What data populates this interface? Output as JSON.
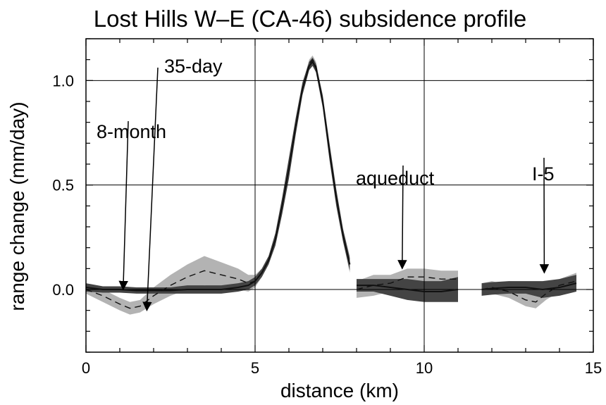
{
  "chart_data": {
    "type": "line",
    "title": "Lost Hills W–E (CA-46) subsidence profile",
    "xlabel": "distance (km)",
    "ylabel": "range change (mm/day)",
    "xlim": [
      0,
      15
    ],
    "ylim": [
      1.2,
      -0.3
    ],
    "y_inverted": true,
    "grid": "major lines at x = 5, 10 and y = 0.0, 0.5, 1.0",
    "x_ticks": [
      {
        "value": 0,
        "label": "0"
      },
      {
        "value": 5,
        "label": "5"
      },
      {
        "value": 10,
        "label": "10"
      },
      {
        "value": 15,
        "label": "15"
      }
    ],
    "y_ticks": [
      {
        "value": 0.0,
        "label": "0.0"
      },
      {
        "value": 0.5,
        "label": "0.5"
      },
      {
        "value": 1.0,
        "label": "1.0"
      }
    ],
    "series": [
      {
        "name": "8-month",
        "style": "solid line with dark band",
        "color": "#111111",
        "band_color": "#444444",
        "segments": [
          {
            "x": [
              0,
              0.5,
              1,
              1.5,
              2,
              2.5,
              3,
              3.5,
              4,
              4.5,
              4.8,
              5.0,
              5.2,
              5.4,
              5.6,
              5.8,
              6.0,
              6.2,
              6.4,
              6.6,
              6.7,
              6.8,
              7.0,
              7.2,
              7.4,
              7.6,
              7.8
            ],
            "y": [
              0.01,
              0.0,
              0.0,
              -0.005,
              -0.005,
              -0.005,
              0.0,
              0.0,
              0.0,
              0.01,
              0.02,
              0.04,
              0.08,
              0.14,
              0.24,
              0.4,
              0.58,
              0.78,
              0.96,
              1.07,
              1.09,
              1.06,
              0.9,
              0.66,
              0.44,
              0.26,
              0.12
            ],
            "band": [
              0.02,
              0.015,
              0.015,
              0.015,
              0.015,
              0.015,
              0.02,
              0.02,
              0.02,
              0.02,
              0.02,
              0.02,
              0.02,
              0.02,
              0.03,
              0.04,
              0.05,
              0.04,
              0.03,
              0.02,
              0.02,
              0.02,
              0.03,
              0.04,
              0.04,
              0.03,
              0.03
            ]
          },
          {
            "x": [
              8.0,
              8.5,
              9.0,
              9.5,
              10.0,
              10.5,
              11.0
            ],
            "y": [
              0.02,
              0.02,
              0.01,
              0.0,
              -0.01,
              -0.01,
              0.0
            ],
            "band": [
              0.03,
              0.03,
              0.04,
              0.05,
              0.05,
              0.05,
              0.06
            ]
          },
          {
            "x": [
              11.7,
              12.0,
              12.5,
              13.0,
              13.5,
              14.0,
              14.5
            ],
            "y": [
              0.0,
              0.005,
              0.01,
              0.01,
              0.0,
              0.01,
              0.03
            ],
            "band": [
              0.03,
              0.03,
              0.03,
              0.03,
              0.04,
              0.04,
              0.04
            ]
          }
        ]
      },
      {
        "name": "35-day",
        "style": "dashed line with light band",
        "color": "#111111",
        "band_color": "#b3b3b3",
        "segments": [
          {
            "x": [
              0,
              0.5,
              1.0,
              1.3,
              1.6,
              2.0,
              2.5,
              3.0,
              3.5,
              4.0,
              4.5,
              4.8,
              5.0,
              5.2,
              5.4,
              5.6,
              5.8,
              6.0,
              6.2,
              6.4,
              6.6,
              6.7,
              6.8,
              7.0,
              7.2,
              7.4,
              7.6,
              7.8
            ],
            "y": [
              0.0,
              -0.03,
              -0.07,
              -0.09,
              -0.08,
              -0.03,
              0.02,
              0.06,
              0.09,
              0.07,
              0.05,
              0.03,
              0.04,
              0.08,
              0.14,
              0.24,
              0.4,
              0.58,
              0.78,
              0.96,
              1.08,
              1.1,
              1.07,
              0.9,
              0.66,
              0.44,
              0.26,
              0.12
            ],
            "band": [
              0.02,
              0.03,
              0.03,
              0.03,
              0.03,
              0.04,
              0.05,
              0.06,
              0.07,
              0.06,
              0.05,
              0.04,
              0.03,
              0.02,
              0.02,
              0.02,
              0.03,
              0.03,
              0.03,
              0.02,
              0.02,
              0.02,
              0.02,
              0.02,
              0.03,
              0.03,
              0.03,
              0.04
            ]
          },
          {
            "x": [
              8.0,
              8.5,
              9.0,
              9.5,
              10.0,
              10.5,
              11.0
            ],
            "y": [
              0.0,
              0.02,
              0.03,
              0.06,
              0.06,
              0.05,
              0.05
            ],
            "band": [
              0.04,
              0.05,
              0.04,
              0.04,
              0.04,
              0.04,
              0.04
            ]
          },
          {
            "x": [
              11.7,
              12.0,
              12.5,
              13.0,
              13.3,
              13.6,
              14.0,
              14.5
            ],
            "y": [
              0.0,
              0.01,
              -0.01,
              -0.05,
              -0.06,
              -0.02,
              0.02,
              0.04
            ],
            "band": [
              0.03,
              0.03,
              0.03,
              0.03,
              0.03,
              0.03,
              0.03,
              0.04
            ]
          }
        ]
      }
    ],
    "annotations": [
      {
        "text": "35-day",
        "arrow_to": {
          "x": 1.8,
          "y": -0.1
        }
      },
      {
        "text": "8-month",
        "arrow_to": {
          "x": 1.1,
          "y": 0.0
        }
      },
      {
        "text": "aqueduct",
        "arrow_to": {
          "x": 9.35,
          "y": 0.1
        }
      },
      {
        "text": "I-5",
        "arrow_to": {
          "x": 13.55,
          "y": 0.08
        }
      }
    ]
  }
}
